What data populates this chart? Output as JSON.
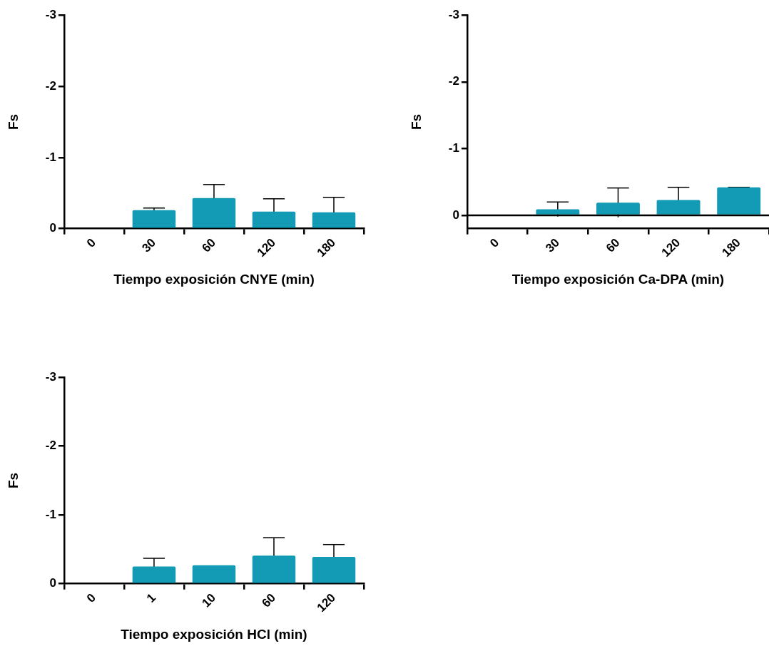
{
  "chart_data": [
    {
      "type": "bar",
      "categories": [
        "0",
        "30",
        "60",
        "120",
        "180"
      ],
      "values": [
        0,
        -0.26,
        -0.43,
        -0.24,
        -0.23
      ],
      "errors": [
        null,
        0.03,
        0.19,
        0.18,
        0.21
      ],
      "color": "#139bb5",
      "xlabel": "Tiempo exposición CNYE (min)",
      "ylabel": "Fs",
      "ylim": [
        0,
        -3
      ],
      "yticks": [
        0,
        -1,
        -2,
        -3
      ],
      "grid": false,
      "legend": false
    },
    {
      "type": "bar",
      "categories": [
        "0",
        "30",
        "60",
        "120",
        "180"
      ],
      "values": [
        0,
        -0.09,
        -0.19,
        -0.23,
        -0.42
      ],
      "errors": [
        null,
        0.11,
        0.22,
        0.19,
        0
      ],
      "color": "#139bb5",
      "xlabel": "Tiempo exposición Ca-DPA (min)",
      "ylabel": "Fs",
      "ylim": [
        0.2,
        -3
      ],
      "yticks": [
        0,
        -1,
        -2,
        -3
      ],
      "grid": false,
      "legend": false,
      "ref_lines": [
        {
          "axis": "y",
          "value": 0,
          "color": "#000000"
        }
      ]
    },
    {
      "type": "bar",
      "categories": [
        "0",
        "1",
        "10",
        "60",
        "120"
      ],
      "values": [
        0,
        -0.25,
        -0.27,
        -0.41,
        -0.39
      ],
      "errors": [
        null,
        0.12,
        null,
        0.26,
        0.18
      ],
      "color": "#139bb5",
      "xlabel": "Tiempo exposición HCl (min)",
      "ylabel": "Fs",
      "ylim": [
        0,
        -3
      ],
      "yticks": [
        0,
        -1,
        -2,
        -3
      ],
      "grid": false,
      "legend": false
    }
  ]
}
